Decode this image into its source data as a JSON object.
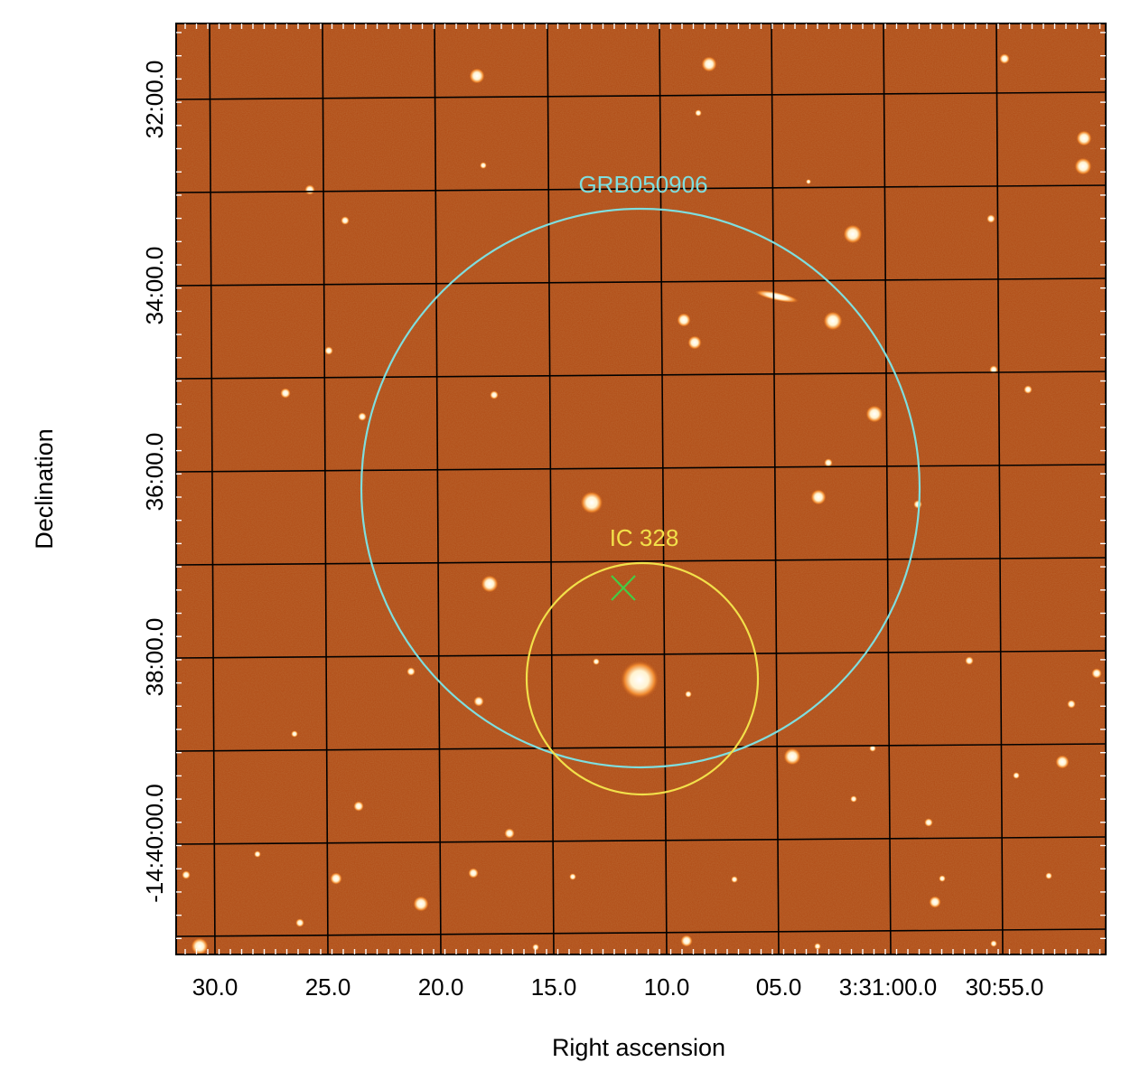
{
  "image": {
    "description_type": "optical sky image with RA/Dec coordinate grid",
    "background_color": "#b04a14",
    "grid_color": "#000000"
  },
  "axes": {
    "x_title": "Right ascension",
    "y_title": "Declination",
    "ra_ticks": [
      "30.0",
      "25.0",
      "20.0",
      "15.0",
      "10.0",
      "05.0",
      "3:31:00.0",
      "30:55.0"
    ],
    "dec_ticks": [
      "32:00.0",
      "34:00.0",
      "36:00.0",
      "38:00.0",
      "-14:40:00.0"
    ]
  },
  "annotations": {
    "grb_label": "GRB050906",
    "grb_color": "#7fdede",
    "galaxy_label": "IC 328",
    "galaxy_color": "#f2e04a",
    "marker_color": "#44cc44"
  }
}
